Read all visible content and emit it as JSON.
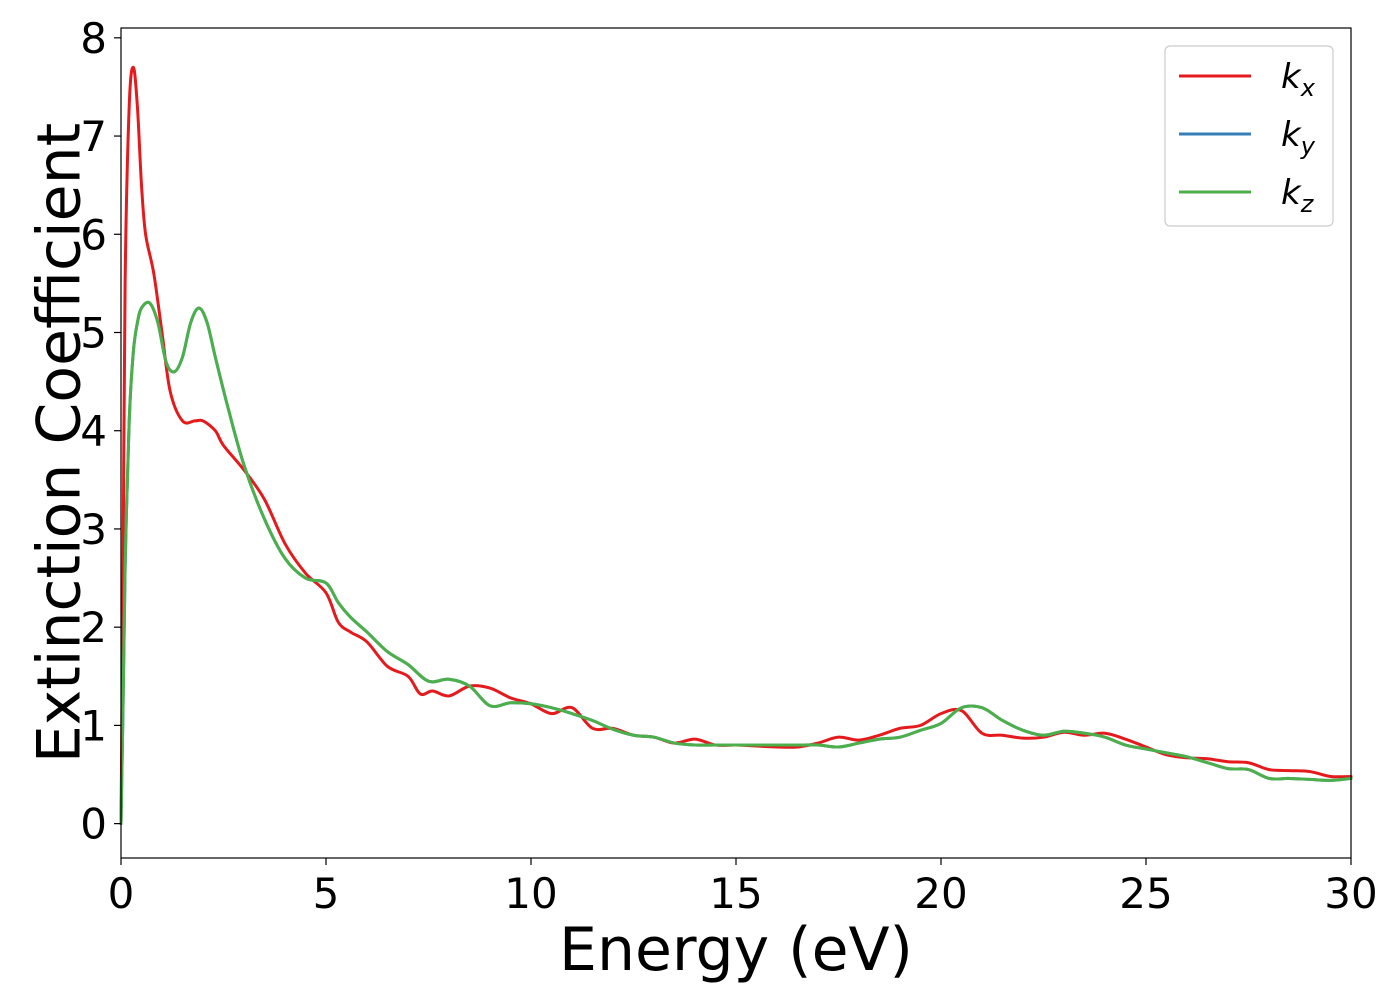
{
  "chart_data": {
    "type": "line",
    "xlabel": "Energy (eV)",
    "ylabel": "Extinction Coefficient",
    "xlim": [
      0,
      30
    ],
    "ylim": [
      -0.35,
      8.1
    ],
    "xticks": [
      0,
      5,
      10,
      15,
      20,
      25,
      30
    ],
    "yticks": [
      0,
      1,
      2,
      3,
      4,
      5,
      6,
      7,
      8
    ],
    "grid": false,
    "legend_position": "top-right",
    "series": [
      {
        "name": "k_x",
        "label_main": "k",
        "label_sub": "x",
        "color": "#e41a1c",
        "x": [
          0,
          0.05,
          0.1,
          0.2,
          0.3,
          0.4,
          0.5,
          0.6,
          0.8,
          1.0,
          1.2,
          1.5,
          1.8,
          2.0,
          2.3,
          2.5,
          3.0,
          3.5,
          4.0,
          4.5,
          5.0,
          5.3,
          5.6,
          6.0,
          6.5,
          7.0,
          7.3,
          7.6,
          8.0,
          8.5,
          9.0,
          9.5,
          10.0,
          10.5,
          11.0,
          11.5,
          12.0,
          12.5,
          13.0,
          13.5,
          14.0,
          14.5,
          15.0,
          15.5,
          16.0,
          16.5,
          17.0,
          17.5,
          18.0,
          18.5,
          19.0,
          19.5,
          20.0,
          20.5,
          21.0,
          21.5,
          22.0,
          22.5,
          23.0,
          23.5,
          24.0,
          24.5,
          25.0,
          25.5,
          26.0,
          26.5,
          27.0,
          27.5,
          28.0,
          28.5,
          29.0,
          29.5,
          30.0
        ],
        "y": [
          0.0,
          2.5,
          5.5,
          7.3,
          7.7,
          7.3,
          6.5,
          6.0,
          5.6,
          5.0,
          4.4,
          4.1,
          4.1,
          4.1,
          4.0,
          3.85,
          3.6,
          3.3,
          2.85,
          2.55,
          2.35,
          2.05,
          1.95,
          1.85,
          1.6,
          1.5,
          1.32,
          1.35,
          1.3,
          1.4,
          1.38,
          1.28,
          1.22,
          1.12,
          1.18,
          0.97,
          0.97,
          0.9,
          0.88,
          0.82,
          0.86,
          0.8,
          0.8,
          0.79,
          0.78,
          0.78,
          0.82,
          0.88,
          0.85,
          0.9,
          0.97,
          1.0,
          1.12,
          1.15,
          0.92,
          0.9,
          0.87,
          0.88,
          0.93,
          0.9,
          0.92,
          0.86,
          0.78,
          0.7,
          0.67,
          0.66,
          0.63,
          0.62,
          0.55,
          0.54,
          0.53,
          0.48,
          0.48
        ]
      },
      {
        "name": "k_y",
        "label_main": "k",
        "label_sub": "y",
        "color": "#377eb8",
        "x": [
          0,
          0.05,
          0.1,
          0.2,
          0.3,
          0.4,
          0.5,
          0.7,
          0.9,
          1.1,
          1.3,
          1.5,
          1.7,
          1.9,
          2.1,
          2.3,
          2.6,
          3.0,
          3.5,
          4.0,
          4.5,
          5.0,
          5.3,
          5.6,
          6.0,
          6.5,
          7.0,
          7.5,
          8.0,
          8.5,
          9.0,
          9.5,
          10.0,
          10.5,
          11.0,
          11.5,
          12.0,
          12.5,
          13.0,
          13.5,
          14.0,
          14.5,
          15.0,
          15.5,
          16.0,
          16.5,
          17.0,
          17.5,
          18.0,
          18.5,
          19.0,
          19.5,
          20.0,
          20.5,
          21.0,
          21.5,
          22.0,
          22.5,
          23.0,
          23.5,
          24.0,
          24.5,
          25.0,
          25.5,
          26.0,
          26.5,
          27.0,
          27.5,
          28.0,
          28.5,
          29.0,
          29.5,
          30.0
        ],
        "y": [
          0.0,
          1.2,
          2.6,
          4.1,
          4.8,
          5.1,
          5.25,
          5.3,
          5.1,
          4.7,
          4.6,
          4.75,
          5.1,
          5.25,
          5.1,
          4.75,
          4.25,
          3.65,
          3.1,
          2.7,
          2.5,
          2.45,
          2.25,
          2.1,
          1.95,
          1.75,
          1.62,
          1.45,
          1.47,
          1.4,
          1.2,
          1.23,
          1.22,
          1.18,
          1.12,
          1.05,
          0.96,
          0.9,
          0.88,
          0.82,
          0.8,
          0.8,
          0.8,
          0.8,
          0.8,
          0.8,
          0.8,
          0.78,
          0.82,
          0.86,
          0.88,
          0.95,
          1.02,
          1.18,
          1.18,
          1.05,
          0.95,
          0.9,
          0.94,
          0.92,
          0.88,
          0.8,
          0.76,
          0.72,
          0.68,
          0.62,
          0.56,
          0.55,
          0.46,
          0.46,
          0.45,
          0.44,
          0.46
        ]
      },
      {
        "name": "k_z",
        "label_main": "k",
        "label_sub": "z",
        "color": "#4daf4a",
        "x": [
          0,
          0.05,
          0.1,
          0.2,
          0.3,
          0.4,
          0.5,
          0.7,
          0.9,
          1.1,
          1.3,
          1.5,
          1.7,
          1.9,
          2.1,
          2.3,
          2.6,
          3.0,
          3.5,
          4.0,
          4.5,
          5.0,
          5.3,
          5.6,
          6.0,
          6.5,
          7.0,
          7.5,
          8.0,
          8.5,
          9.0,
          9.5,
          10.0,
          10.5,
          11.0,
          11.5,
          12.0,
          12.5,
          13.0,
          13.5,
          14.0,
          14.5,
          15.0,
          15.5,
          16.0,
          16.5,
          17.0,
          17.5,
          18.0,
          18.5,
          19.0,
          19.5,
          20.0,
          20.5,
          21.0,
          21.5,
          22.0,
          22.5,
          23.0,
          23.5,
          24.0,
          24.5,
          25.0,
          25.5,
          26.0,
          26.5,
          27.0,
          27.5,
          28.0,
          28.5,
          29.0,
          29.5,
          30.0
        ],
        "y": [
          0.0,
          1.2,
          2.6,
          4.1,
          4.8,
          5.1,
          5.25,
          5.3,
          5.1,
          4.7,
          4.6,
          4.75,
          5.1,
          5.25,
          5.1,
          4.75,
          4.25,
          3.65,
          3.1,
          2.7,
          2.5,
          2.45,
          2.25,
          2.1,
          1.95,
          1.75,
          1.62,
          1.45,
          1.47,
          1.4,
          1.2,
          1.23,
          1.22,
          1.18,
          1.12,
          1.05,
          0.96,
          0.9,
          0.88,
          0.82,
          0.8,
          0.8,
          0.8,
          0.8,
          0.8,
          0.8,
          0.8,
          0.78,
          0.82,
          0.86,
          0.88,
          0.95,
          1.02,
          1.18,
          1.18,
          1.05,
          0.95,
          0.9,
          0.94,
          0.92,
          0.88,
          0.8,
          0.76,
          0.72,
          0.68,
          0.62,
          0.56,
          0.55,
          0.46,
          0.46,
          0.45,
          0.44,
          0.46
        ]
      }
    ]
  }
}
